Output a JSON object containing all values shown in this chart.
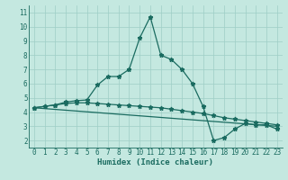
{
  "xlabel": "Humidex (Indice chaleur)",
  "background_color": "#c4e8e0",
  "grid_color": "#9ecec6",
  "line_color": "#1a6b60",
  "xlim": [
    -0.5,
    23.5
  ],
  "ylim": [
    1.5,
    11.5
  ],
  "xticks": [
    0,
    1,
    2,
    3,
    4,
    5,
    6,
    7,
    8,
    9,
    10,
    11,
    12,
    13,
    14,
    15,
    16,
    17,
    18,
    19,
    20,
    21,
    22,
    23
  ],
  "yticks": [
    2,
    3,
    4,
    5,
    6,
    7,
    8,
    9,
    10,
    11
  ],
  "series_flat_x": [
    0,
    1,
    2,
    3,
    4,
    5,
    6,
    7,
    8,
    9,
    10,
    11,
    12,
    13,
    14,
    15,
    16,
    17,
    18,
    19,
    20,
    21,
    22,
    23
  ],
  "series_flat_y": [
    4.3,
    4.4,
    4.5,
    4.6,
    4.65,
    4.65,
    4.6,
    4.55,
    4.5,
    4.45,
    4.4,
    4.35,
    4.3,
    4.2,
    4.1,
    4.0,
    3.9,
    3.75,
    3.6,
    3.5,
    3.4,
    3.3,
    3.2,
    3.1
  ],
  "series_peak_x": [
    0,
    1,
    2,
    3,
    4,
    5,
    6,
    7,
    8,
    9,
    10,
    11,
    12,
    13,
    14,
    15,
    16,
    17,
    18,
    19,
    20,
    21,
    22,
    23
  ],
  "series_peak_y": [
    4.3,
    4.4,
    4.5,
    4.7,
    4.8,
    4.85,
    5.9,
    6.5,
    6.5,
    7.0,
    9.2,
    10.7,
    8.0,
    7.7,
    7.0,
    6.0,
    4.4,
    2.0,
    2.2,
    2.8,
    3.2,
    3.1,
    3.1,
    2.8
  ],
  "series_line_x": [
    0,
    23
  ],
  "series_line_y": [
    4.3,
    3.0
  ],
  "markersize": 3.5,
  "linewidth": 0.9,
  "tick_fontsize": 5.5,
  "xlabel_fontsize": 6.5
}
